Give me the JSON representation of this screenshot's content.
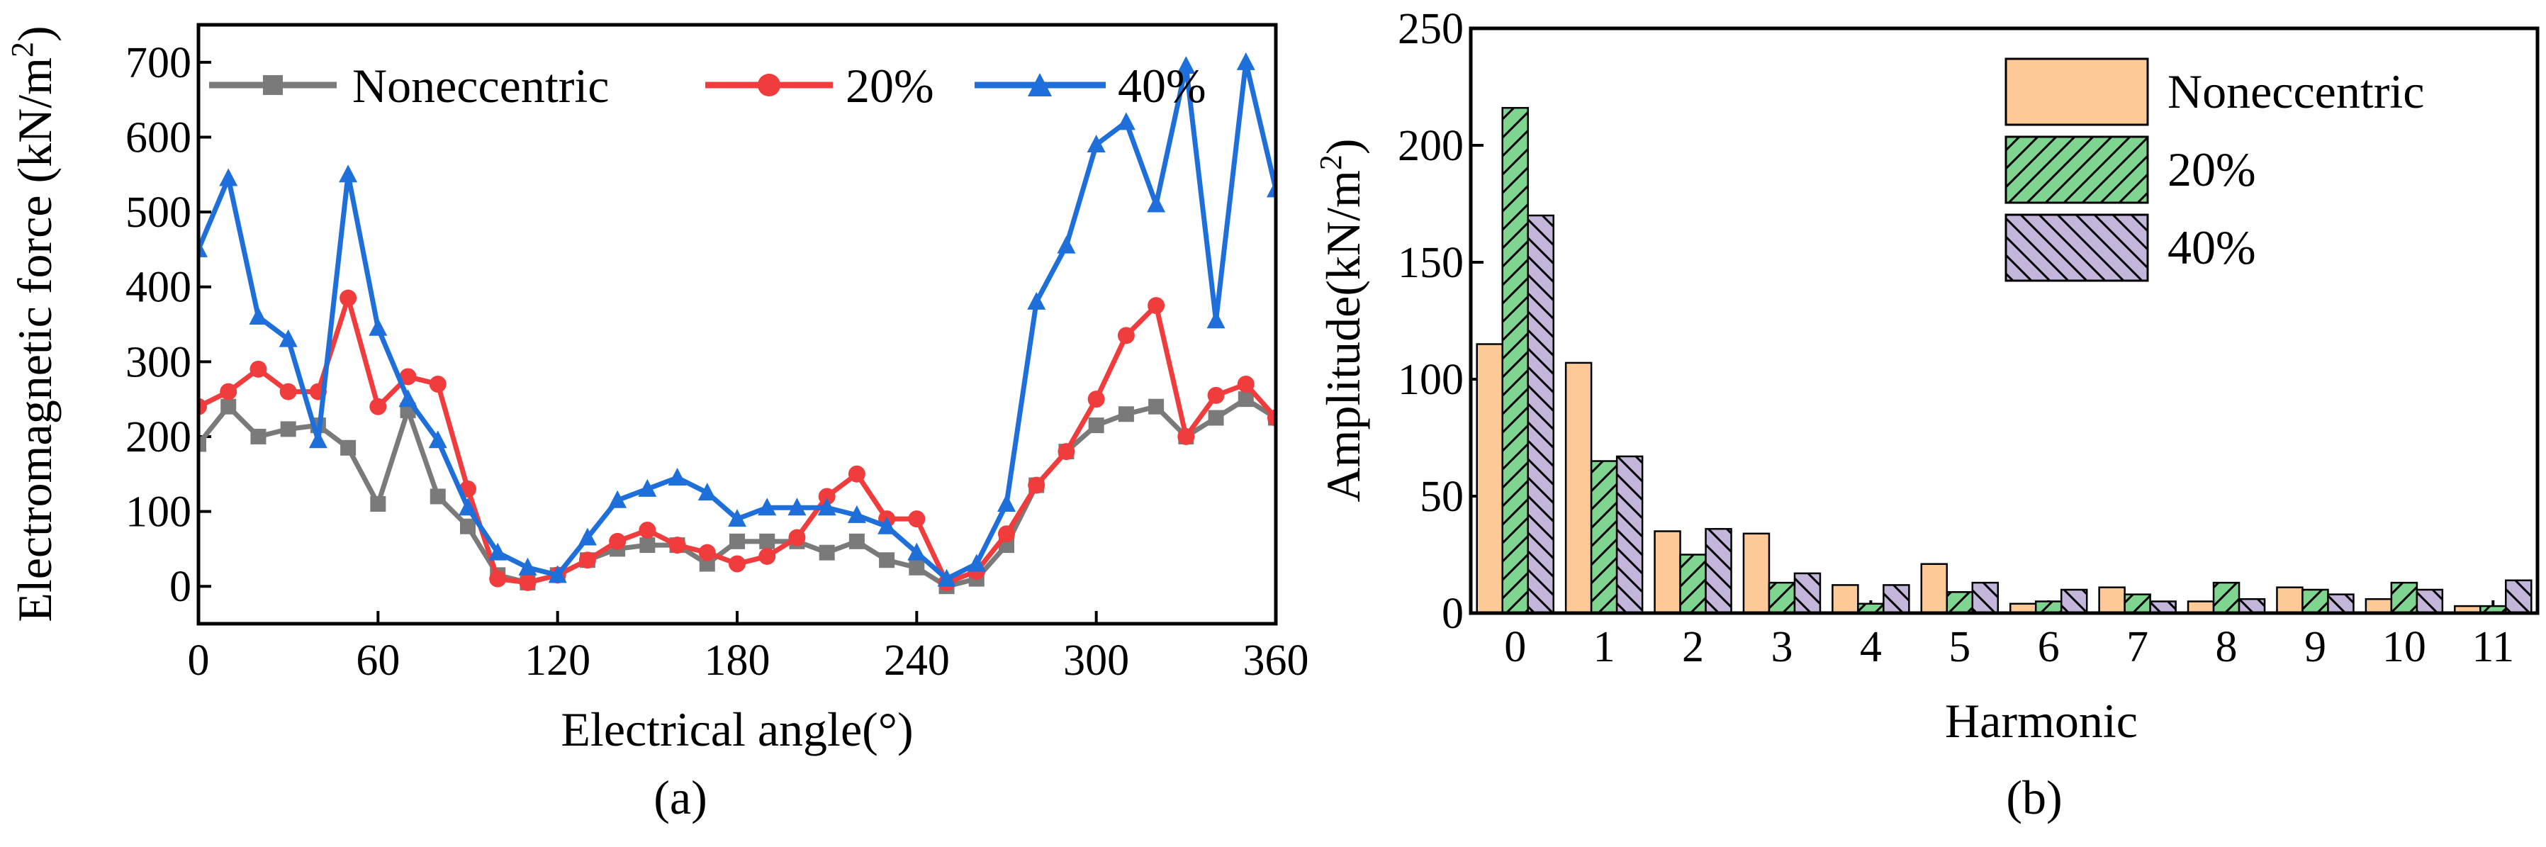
{
  "chart_data": [
    {
      "type": "line",
      "caption": "(a)",
      "xlabel": "Electrical angle(°)",
      "ylabel_main": "Electromagnetic force (kN/m",
      "ylabel_sup": "2",
      "ylabel_close": ")",
      "xlim": [
        0,
        360
      ],
      "ylim": [
        -50,
        750
      ],
      "xticks": [
        0,
        60,
        120,
        180,
        240,
        300,
        360
      ],
      "yticks": [
        0,
        100,
        200,
        300,
        400,
        500,
        600,
        700
      ],
      "x": [
        0,
        10,
        20,
        30,
        40,
        50,
        60,
        70,
        80,
        90,
        100,
        110,
        120,
        130,
        140,
        150,
        160,
        170,
        180,
        190,
        200,
        210,
        220,
        230,
        240,
        250,
        260,
        270,
        280,
        290,
        300,
        310,
        320,
        330,
        340,
        350,
        360
      ],
      "series": [
        {
          "name": "Noneccentric",
          "color": "#7a7a7a",
          "marker": "square",
          "values": [
            190,
            240,
            200,
            210,
            215,
            185,
            110,
            235,
            120,
            80,
            15,
            5,
            15,
            35,
            50,
            55,
            55,
            30,
            60,
            60,
            60,
            45,
            60,
            35,
            25,
            0,
            10,
            55,
            135,
            180,
            215,
            230,
            240,
            200,
            225,
            250,
            225
          ]
        },
        {
          "name": "20%",
          "color": "#f03c3c",
          "marker": "circle",
          "values": [
            240,
            260,
            290,
            260,
            260,
            385,
            240,
            280,
            270,
            130,
            10,
            5,
            15,
            35,
            60,
            75,
            55,
            45,
            30,
            40,
            65,
            120,
            150,
            90,
            90,
            5,
            20,
            70,
            135,
            180,
            250,
            335,
            375,
            200,
            255,
            270,
            225
          ]
        },
        {
          "name": "40%",
          "color": "#1e6fd9",
          "marker": "triangle",
          "values": [
            450,
            545,
            360,
            330,
            195,
            550,
            345,
            250,
            195,
            105,
            45,
            25,
            15,
            65,
            115,
            130,
            145,
            125,
            90,
            105,
            105,
            105,
            95,
            80,
            45,
            10,
            30,
            110,
            380,
            455,
            590,
            620,
            510,
            695,
            355,
            700,
            530
          ]
        }
      ]
    },
    {
      "type": "bar",
      "caption": "(b)",
      "xlabel": "Harmonic",
      "ylabel_main": "Amplitude(kN/m",
      "ylabel_sup": "2",
      "ylabel_close": ")",
      "ylim": [
        0,
        250
      ],
      "yticks": [
        0,
        50,
        100,
        150,
        200,
        250
      ],
      "categories": [
        "0",
        "1",
        "2",
        "3",
        "4",
        "5",
        "6",
        "7",
        "8",
        "9",
        "10",
        "11"
      ],
      "series": [
        {
          "name": "Noneccentric",
          "color": "#fcc997",
          "hatch": "none",
          "values": [
            115,
            107,
            35,
            34,
            12,
            21,
            4,
            11,
            5,
            11,
            6,
            3
          ]
        },
        {
          "name": "20%",
          "color": "#7fd48f",
          "hatch": "forward",
          "values": [
            216,
            65,
            25,
            13,
            4,
            9,
            5,
            8,
            13,
            10,
            13,
            3
          ]
        },
        {
          "name": "40%",
          "color": "#c4b5da",
          "hatch": "back",
          "values": [
            170,
            67,
            36,
            17,
            12,
            13,
            10,
            5,
            6,
            8,
            10,
            14
          ]
        }
      ]
    }
  ]
}
